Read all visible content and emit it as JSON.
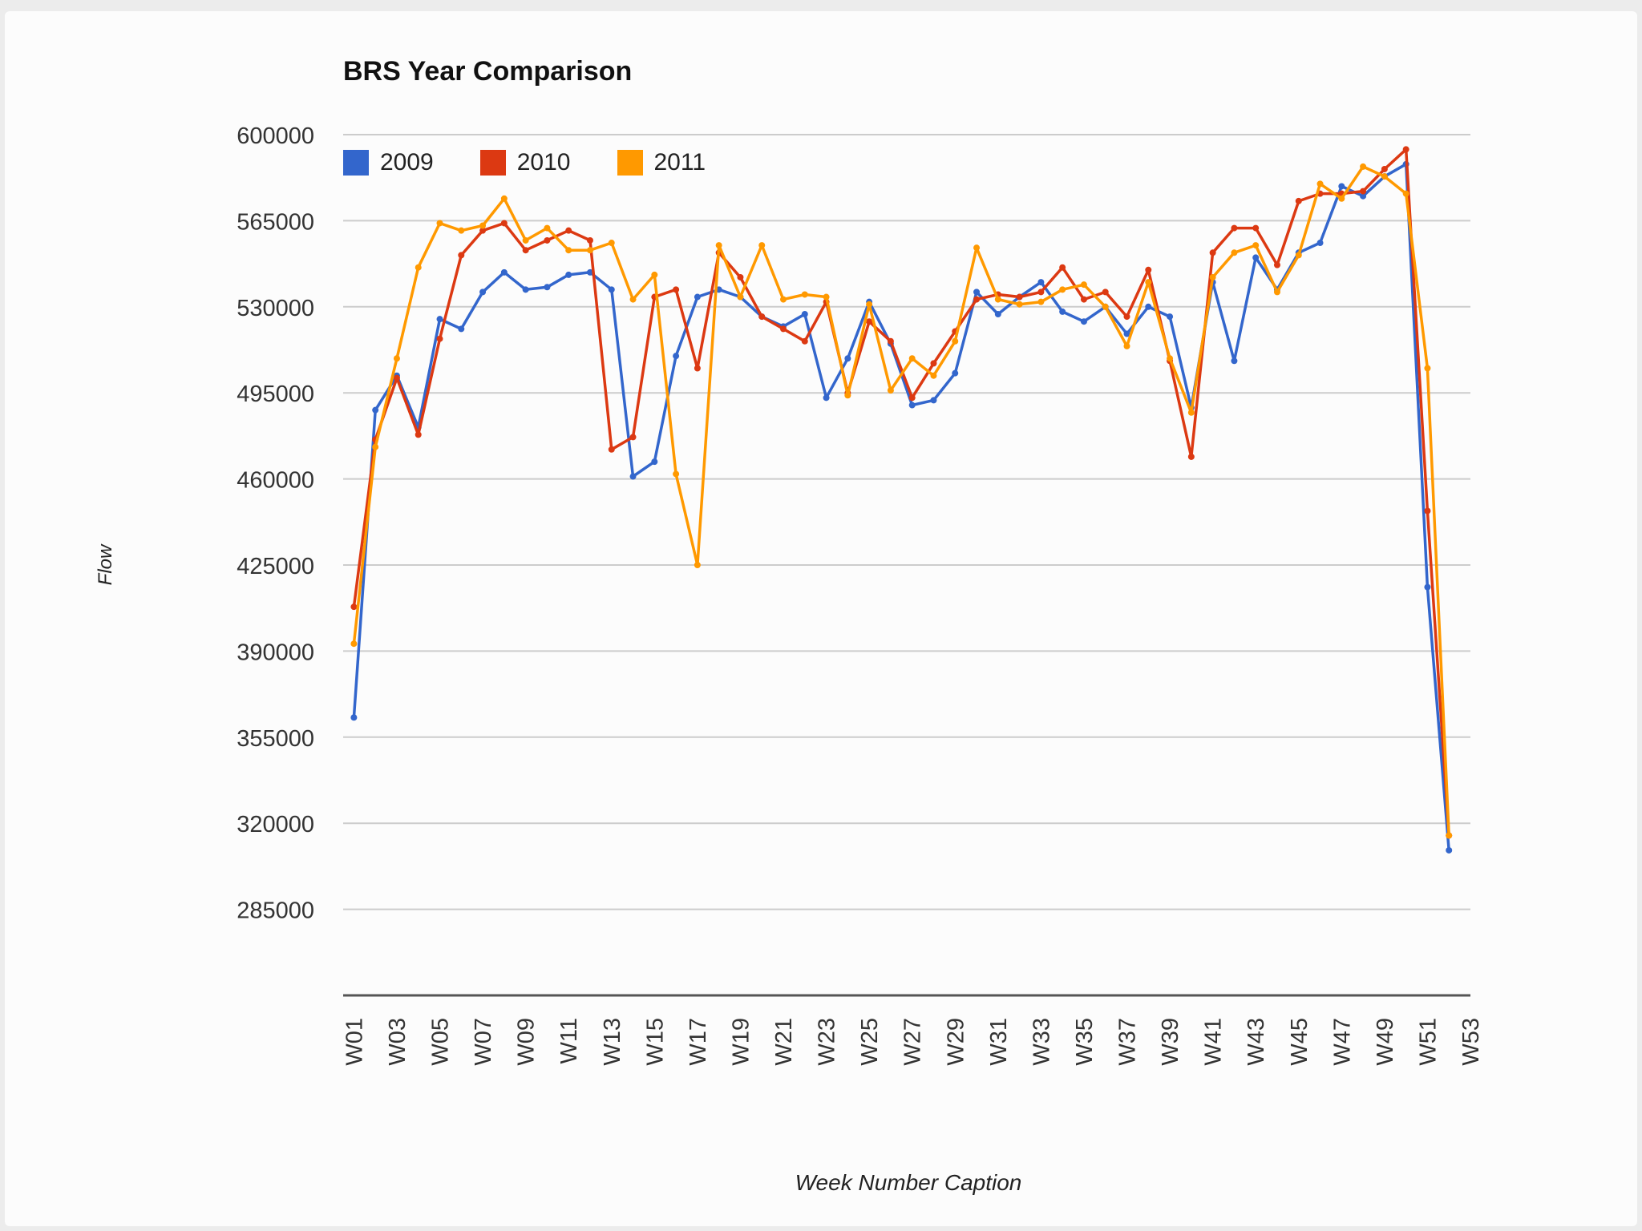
{
  "chart_data": {
    "type": "line",
    "title": "BRS Year Comparison",
    "xlabel": "Week Number Caption",
    "ylabel": "Flow",
    "ylim": [
      250000,
      600000
    ],
    "yticks": [
      600000,
      565000,
      530000,
      495000,
      460000,
      425000,
      390000,
      355000,
      320000,
      285000
    ],
    "categories": [
      "W01",
      "W02",
      "W03",
      "W04",
      "W05",
      "W06",
      "W07",
      "W08",
      "W09",
      "W10",
      "W11",
      "W12",
      "W13",
      "W14",
      "W15",
      "W16",
      "W17",
      "W18",
      "W19",
      "W20",
      "W21",
      "W22",
      "W23",
      "W24",
      "W25",
      "W26",
      "W27",
      "W28",
      "W29",
      "W30",
      "W31",
      "W32",
      "W33",
      "W34",
      "W35",
      "W36",
      "W37",
      "W38",
      "W39",
      "W40",
      "W41",
      "W42",
      "W43",
      "W44",
      "W45",
      "W46",
      "W47",
      "W48",
      "W49",
      "W50",
      "W51",
      "W52",
      "W53"
    ],
    "x_tick_labels": [
      "W01",
      "W03",
      "W05",
      "W07",
      "W09",
      "W11",
      "W13",
      "W15",
      "W17",
      "W19",
      "W21",
      "W23",
      "W25",
      "W27",
      "W29",
      "W31",
      "W33",
      "W35",
      "W37",
      "W39",
      "W41",
      "W43",
      "W45",
      "W47",
      "W49",
      "W51",
      "W53"
    ],
    "grid": true,
    "legend_position": "top-left",
    "series": [
      {
        "name": "2009",
        "color": "#3366cc",
        "values": [
          363000,
          488000,
          502000,
          481000,
          525000,
          521000,
          536000,
          544000,
          537000,
          538000,
          543000,
          544000,
          537000,
          461000,
          467000,
          510000,
          534000,
          537000,
          534000,
          526000,
          522000,
          527000,
          493000,
          509000,
          532000,
          515000,
          490000,
          492000,
          503000,
          536000,
          527000,
          534000,
          540000,
          528000,
          524000,
          530000,
          519000,
          530000,
          526000,
          489000,
          540000,
          508000,
          550000,
          537000,
          552000,
          556000,
          579000,
          575000,
          583000,
          588000,
          416000,
          309000,
          null
        ]
      },
      {
        "name": "2010",
        "color": "#dc3912",
        "values": [
          408000,
          476000,
          501000,
          478000,
          517000,
          551000,
          561000,
          564000,
          553000,
          557000,
          561000,
          557000,
          472000,
          477000,
          534000,
          537000,
          505000,
          552000,
          542000,
          526000,
          521000,
          516000,
          532000,
          495000,
          524000,
          516000,
          493000,
          507000,
          520000,
          533000,
          535000,
          534000,
          536000,
          546000,
          533000,
          536000,
          526000,
          545000,
          508000,
          469000,
          552000,
          562000,
          562000,
          547000,
          573000,
          576000,
          576000,
          577000,
          586000,
          594000,
          447000,
          315000,
          null
        ]
      },
      {
        "name": "2011",
        "color": "#ff9900",
        "values": [
          393000,
          473000,
          509000,
          546000,
          564000,
          561000,
          563000,
          574000,
          557000,
          562000,
          553000,
          553000,
          556000,
          533000,
          543000,
          462000,
          425000,
          555000,
          534000,
          555000,
          533000,
          535000,
          534000,
          494000,
          531000,
          496000,
          509000,
          502000,
          516000,
          554000,
          533000,
          531000,
          532000,
          537000,
          539000,
          530000,
          514000,
          540000,
          509000,
          487000,
          542000,
          552000,
          555000,
          536000,
          551000,
          580000,
          574000,
          587000,
          583000,
          576000,
          505000,
          315000,
          null
        ]
      }
    ]
  }
}
